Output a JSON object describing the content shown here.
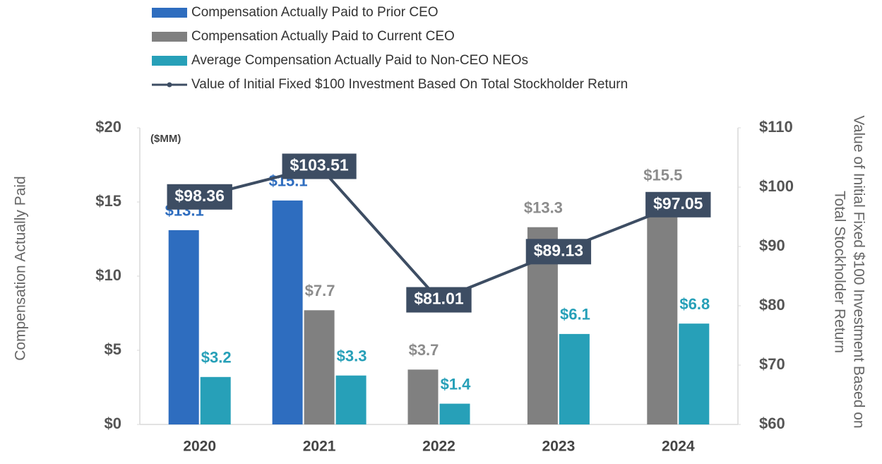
{
  "chart_data": {
    "type": "bar",
    "annotation": "($MM)",
    "ylabel": "Compensation Actually Paid",
    "y2label": [
      "Value of Initial Fixed $100 Investment Based on",
      "Total Stockholder Return"
    ],
    "categories": [
      "2020",
      "2021",
      "2022",
      "2023",
      "2024"
    ],
    "ylim": [
      0,
      20
    ],
    "yticks": [
      {
        "value": 0,
        "label": "$0"
      },
      {
        "value": 5,
        "label": "$5"
      },
      {
        "value": 10,
        "label": "$10"
      },
      {
        "value": 15,
        "label": "$15"
      },
      {
        "value": 20,
        "label": "$20"
      }
    ],
    "y2lim": [
      60,
      110
    ],
    "y2ticks": [
      {
        "value": 60,
        "label": "$60"
      },
      {
        "value": 70,
        "label": "$70"
      },
      {
        "value": 80,
        "label": "$80"
      },
      {
        "value": 90,
        "label": "$90"
      },
      {
        "value": 100,
        "label": "$100"
      },
      {
        "value": 110,
        "label": "$110"
      }
    ],
    "series": [
      {
        "name": "Compensation Actually Paid to Prior CEO",
        "color": "#2e6dbf",
        "label_color": "#2e6dbf",
        "values": [
          13.1,
          15.1,
          null,
          null,
          null
        ],
        "value_labels": [
          "$13.1",
          "$15.1",
          null,
          null,
          null
        ]
      },
      {
        "name": "Compensation Actually Paid to Current CEO",
        "color": "#808080",
        "label_color": "#8c8c8c",
        "values": [
          null,
          7.7,
          3.7,
          13.3,
          15.5
        ],
        "value_labels": [
          null,
          "$7.7",
          "$3.7",
          "$13.3",
          "$15.5"
        ]
      },
      {
        "name": "Average Compensation Actually Paid to Non-CEO NEOs",
        "color": "#27a0b8",
        "label_color": "#27a0b8",
        "values": [
          3.2,
          3.3,
          1.4,
          6.1,
          6.8
        ],
        "value_labels": [
          "$3.2",
          "$3.3",
          "$1.4",
          "$6.1",
          "$6.8"
        ]
      },
      {
        "name": "Value of Initial Fixed $100 Investment Based On Total Stockholder Return",
        "type": "line",
        "axis": "y2",
        "color": "#3d4d63",
        "values": [
          98.36,
          103.51,
          81.01,
          89.13,
          97.05
        ],
        "value_labels": [
          "$98.36",
          "$103.51",
          "$81.01",
          "$89.13",
          "$97.05"
        ]
      }
    ]
  }
}
